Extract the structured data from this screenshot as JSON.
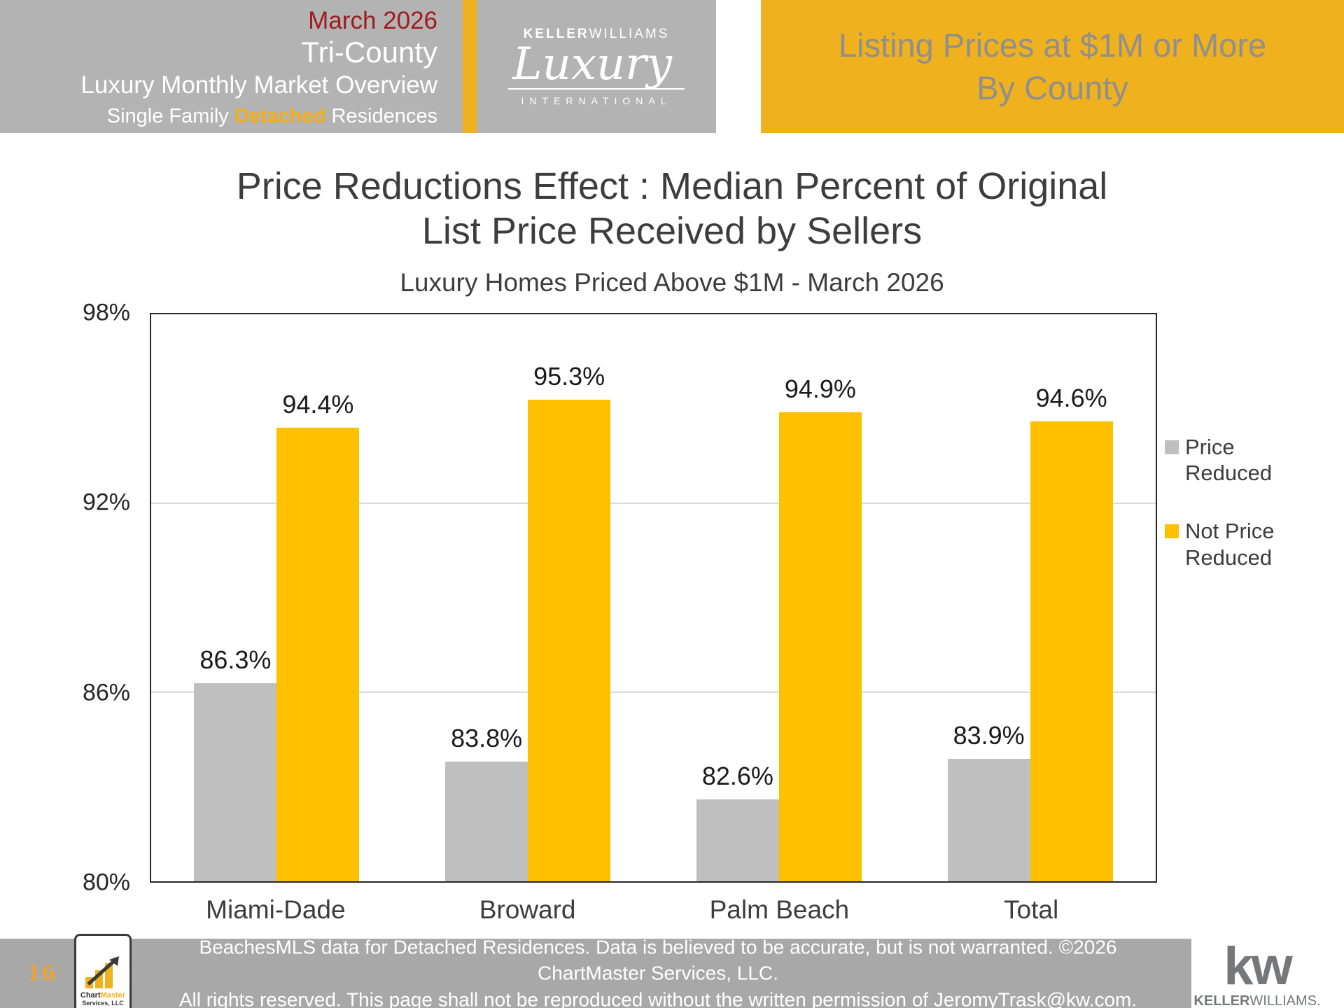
{
  "header": {
    "left": {
      "date": "March 2026",
      "line1": "Tri-County",
      "line2": "Luxury Monthly Market Overview",
      "line3_pre": "Single Family ",
      "line3_highlight": "Detached",
      "line3_post": " Residences"
    },
    "logo": {
      "top_bold": "KELLER",
      "top_light": "WILLIAMS",
      "script": "Luxury",
      "bottom": "INTERNATIONAL"
    },
    "right": {
      "line1": "Listing Prices at $1M or More",
      "line2": "By County"
    }
  },
  "chart_data": {
    "type": "bar",
    "title": "Price Reductions Effect : Median Percent of Original List Price Received by Sellers",
    "title_lines": [
      "Price Reductions Effect : Median Percent of Original",
      "List Price Received by Sellers"
    ],
    "subtitle": "Luxury Homes Priced Above $1M - March 2026",
    "categories": [
      "Miami-Dade",
      "Broward",
      "Palm Beach",
      "Total"
    ],
    "series": [
      {
        "name": "Price Reduced",
        "color": "#bfbfbf",
        "values": [
          86.3,
          83.8,
          82.6,
          83.9
        ]
      },
      {
        "name": "Not Price Reduced",
        "color": "#ffc000",
        "values": [
          94.4,
          95.3,
          94.9,
          94.6
        ]
      }
    ],
    "ylim": [
      80,
      98
    ],
    "yticks": [
      80,
      86,
      92,
      98
    ],
    "ytick_labels": [
      "80%",
      "86%",
      "92%",
      "98%"
    ],
    "value_suffix": "%",
    "grid": true,
    "legend_position": "right"
  },
  "footer": {
    "page_number": "16",
    "disclaimer_line1": "BeachesMLS data for Detached Residences.  Data is believed to be accurate, but is not warranted.   ©2026  ChartMaster Services, LLC.",
    "disclaimer_line2": "All rights reserved. This page shall not be reproduced without the written permission of JeromyTrask@kw.com.",
    "chartmaster": {
      "name_part1": "Chart",
      "name_part2": "Master",
      "subname": "Services, LLC"
    },
    "kw_mark": "kw",
    "kw_name_bold": "KELLER",
    "kw_name_light": "WILLIAMS."
  },
  "colors": {
    "banner_gray": "#b3b3b3",
    "banner_gold": "#efb11e",
    "bar_gray": "#bfbfbf",
    "bar_gold": "#ffc000",
    "date_red": "#9e1b1e",
    "footer_gray": "#a8a8a8"
  }
}
